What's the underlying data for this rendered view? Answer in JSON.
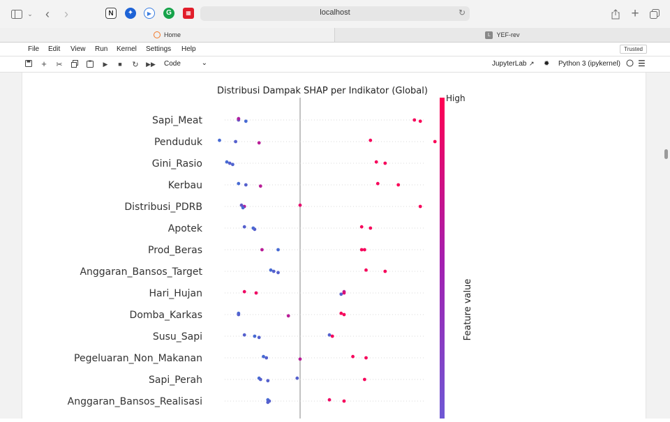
{
  "browser": {
    "url": "localhost",
    "tabs": [
      {
        "label": "Home",
        "active": true
      },
      {
        "label": "YEF-rev",
        "active": false
      }
    ]
  },
  "menu": {
    "items": [
      "File",
      "Edit",
      "View",
      "Run",
      "Kernel",
      "Settings",
      "Help"
    ],
    "trusted": "Trusted"
  },
  "toolbar": {
    "cell_type": "Code",
    "jupyterlab_label": "JupyterLab",
    "kernel_label": "Python 3 (ipykernel)"
  },
  "chart_data": {
    "type": "scatter",
    "title": "Distribusi Dampak SHAP per Indikator (Global)",
    "colorbar_high": "High",
    "colorbar_label": "Feature value",
    "features": [
      {
        "name": "Sapi_Meat",
        "points": [
          [
            -0.42,
            0.2
          ],
          [
            -0.42,
            0.25
          ],
          [
            -0.37,
            0.15
          ],
          [
            -0.42,
            0.55
          ],
          [
            0.78,
            0.95
          ],
          [
            0.82,
            0.97
          ]
        ]
      },
      {
        "name": "Penduduk",
        "points": [
          [
            -0.55,
            0.15
          ],
          [
            -0.44,
            0.2
          ],
          [
            -0.28,
            0.6
          ],
          [
            0.48,
            0.95
          ],
          [
            0.92,
            0.97
          ]
        ]
      },
      {
        "name": "Gini_Rasio",
        "points": [
          [
            -0.5,
            0.15
          ],
          [
            -0.48,
            0.2
          ],
          [
            -0.46,
            0.18
          ],
          [
            0.52,
            0.95
          ],
          [
            0.58,
            0.95
          ]
        ]
      },
      {
        "name": "Kerbau",
        "points": [
          [
            -0.42,
            0.15
          ],
          [
            -0.37,
            0.2
          ],
          [
            -0.27,
            0.6
          ],
          [
            0.53,
            0.95
          ],
          [
            0.67,
            0.97
          ]
        ]
      },
      {
        "name": "Distribusi_PDRB",
        "points": [
          [
            -0.4,
            0.25
          ],
          [
            -0.38,
            0.55
          ],
          [
            -0.39,
            0.15
          ],
          [
            0.0,
            0.85
          ],
          [
            0.82,
            0.95
          ]
        ]
      },
      {
        "name": "Apotek",
        "points": [
          [
            -0.38,
            0.2
          ],
          [
            -0.32,
            0.15
          ],
          [
            -0.31,
            0.2
          ],
          [
            0.42,
            0.95
          ],
          [
            0.48,
            0.95
          ]
        ]
      },
      {
        "name": "Prod_Beras",
        "points": [
          [
            -0.26,
            0.6
          ],
          [
            -0.15,
            0.15
          ],
          [
            0.42,
            0.95
          ],
          [
            0.44,
            0.95
          ]
        ]
      },
      {
        "name": "Anggaran_Bansos_Target",
        "points": [
          [
            -0.2,
            0.15
          ],
          [
            -0.18,
            0.2
          ],
          [
            -0.15,
            0.2
          ],
          [
            0.45,
            0.95
          ],
          [
            0.58,
            0.95
          ]
        ]
      },
      {
        "name": "Hari_Hujan",
        "points": [
          [
            -0.38,
            0.9
          ],
          [
            -0.3,
            0.9
          ],
          [
            0.28,
            0.2
          ],
          [
            0.3,
            0.6
          ],
          [
            0.3,
            0.8
          ]
        ]
      },
      {
        "name": "Domba_Karkas",
        "points": [
          [
            -0.42,
            0.15
          ],
          [
            -0.42,
            0.2
          ],
          [
            -0.08,
            0.6
          ],
          [
            0.28,
            0.95
          ],
          [
            0.3,
            0.95
          ]
        ]
      },
      {
        "name": "Susu_Sapi",
        "points": [
          [
            -0.38,
            0.2
          ],
          [
            -0.31,
            0.15
          ],
          [
            -0.28,
            0.2
          ],
          [
            0.2,
            0.2
          ],
          [
            0.22,
            0.95
          ]
        ]
      },
      {
        "name": "Pegeluaran_Non_Makanan",
        "points": [
          [
            -0.25,
            0.15
          ],
          [
            -0.23,
            0.2
          ],
          [
            0.0,
            0.6
          ],
          [
            0.36,
            0.95
          ],
          [
            0.45,
            0.95
          ]
        ]
      },
      {
        "name": "Sapi_Perah",
        "points": [
          [
            -0.28,
            0.15
          ],
          [
            -0.27,
            0.2
          ],
          [
            -0.22,
            0.2
          ],
          [
            -0.02,
            0.2
          ],
          [
            0.44,
            0.95
          ]
        ]
      },
      {
        "name": "Anggaran_Bansos_Realisasi",
        "points": [
          [
            -0.22,
            0.15
          ],
          [
            -0.21,
            0.2
          ],
          [
            -0.22,
            0.2
          ],
          [
            0.2,
            0.9
          ],
          [
            0.3,
            0.95
          ]
        ]
      }
    ]
  }
}
